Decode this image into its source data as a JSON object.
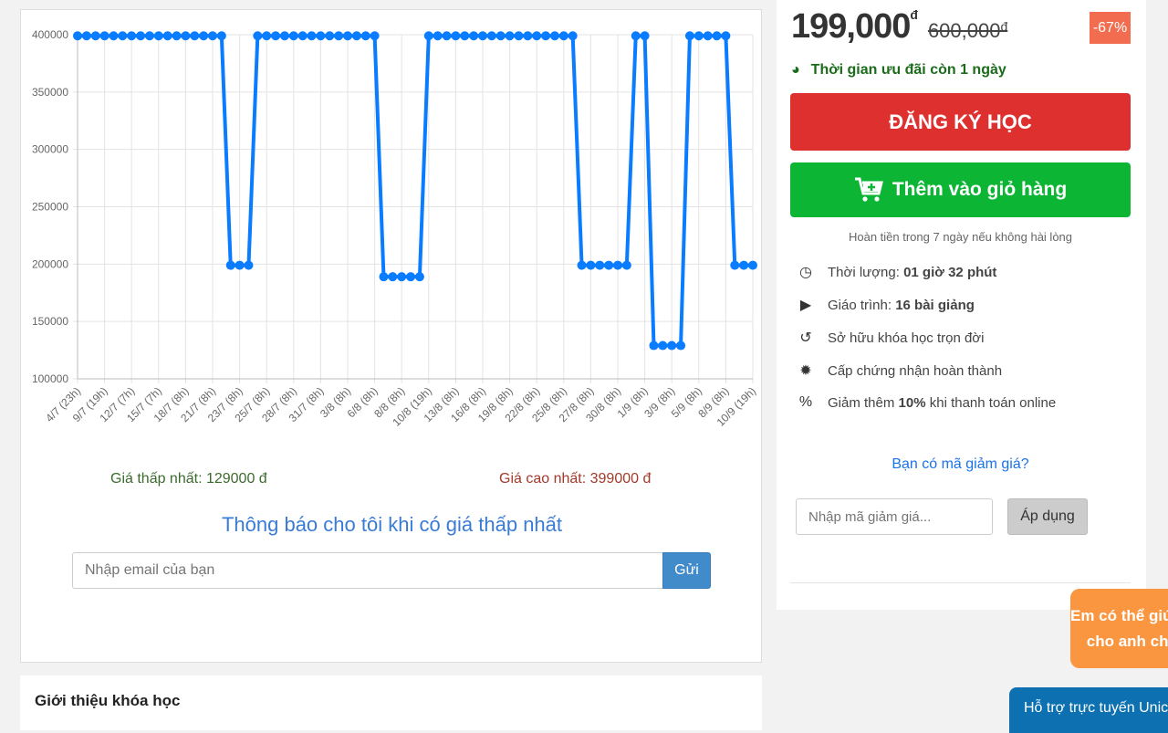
{
  "chart_data": {
    "type": "line",
    "ylim": [
      100000,
      400000
    ],
    "y_ticks": [
      100000,
      150000,
      200000,
      250000,
      300000,
      350000,
      400000
    ],
    "x_tick_labels": [
      "4/7 (23h)",
      "9/7 (19h)",
      "12/7 (7h)",
      "15/7 (7h)",
      "18/7 (8h)",
      "21/7 (8h)",
      "23/7 (8h)",
      "25/7 (8h)",
      "28/7 (8h)",
      "31/7 (8h)",
      "3/8 (8h)",
      "6/8 (8h)",
      "8/8 (8h)",
      "10/8 (19h)",
      "13/8 (8h)",
      "16/8 (8h)",
      "19/8 (8h)",
      "22/8 (8h)",
      "25/8 (8h)",
      "27/8 (8h)",
      "30/8 (8h)",
      "1/9 (8h)",
      "3/9 (8h)",
      "5/9 (8h)",
      "8/9 (8h)",
      "10/9 (19h)"
    ],
    "values": [
      399000,
      399000,
      399000,
      399000,
      399000,
      399000,
      399000,
      399000,
      399000,
      399000,
      399000,
      399000,
      399000,
      399000,
      399000,
      399000,
      399000,
      199000,
      199000,
      199000,
      399000,
      399000,
      399000,
      399000,
      399000,
      399000,
      399000,
      399000,
      399000,
      399000,
      399000,
      399000,
      399000,
      399000,
      189000,
      189000,
      189000,
      189000,
      189000,
      399000,
      399000,
      399000,
      399000,
      399000,
      399000,
      399000,
      399000,
      399000,
      399000,
      399000,
      399000,
      399000,
      399000,
      399000,
      399000,
      399000,
      199000,
      199000,
      199000,
      199000,
      199000,
      199000,
      399000,
      399000,
      129000,
      129000,
      129000,
      129000,
      399000,
      399000,
      399000,
      399000,
      399000,
      199000,
      199000,
      199000
    ],
    "grid": true,
    "line_color": "#0a7cff"
  },
  "price_stats": {
    "min": "Giá thấp nhất: 129000 đ",
    "max": "Giá cao nhất: 399000 đ"
  },
  "notify": {
    "title": "Thông báo cho tôi khi có giá thấp nhất",
    "email_placeholder": "Nhập email của bạn",
    "send": "Gửi"
  },
  "intro": {
    "title": "Giới thiệu khóa học"
  },
  "panel": {
    "price": "199,000",
    "currency": "đ",
    "old_price": "600,000",
    "discount": "-67%",
    "timer": "Thời gian ưu đãi còn 1 ngày",
    "register": "ĐĂNG KÝ HỌC",
    "add_cart": "Thêm vào giỏ hàng",
    "refund": "Hoàn tiền trong 7 ngày nếu không hài lòng",
    "features": [
      {
        "icon": "clock-icon",
        "label": "Thời lượng: ",
        "bold": "01 giờ 32 phút",
        "rest": ""
      },
      {
        "icon": "play-icon",
        "label": "Giáo trình: ",
        "bold": "16 bài giảng",
        "rest": ""
      },
      {
        "icon": "history-icon",
        "label": "Sở hữu khóa học trọn đời",
        "bold": "",
        "rest": ""
      },
      {
        "icon": "certificate-icon",
        "label": "Cấp chứng nhận hoàn thành",
        "bold": "",
        "rest": ""
      },
      {
        "icon": "percent-icon",
        "label": "Giảm thêm ",
        "bold": "10%",
        "rest": " khi thanh toán online"
      }
    ],
    "coupon_link": "Bạn có mã giảm giá?",
    "coupon_placeholder": "Nhập mã giảm giá...",
    "apply": "Áp dụng"
  },
  "chat": {
    "bubble_line1": "Em có thể giúp gì",
    "bubble_line2": "cho anh chị",
    "support": "Hỗ trợ trực tuyến Unica"
  }
}
